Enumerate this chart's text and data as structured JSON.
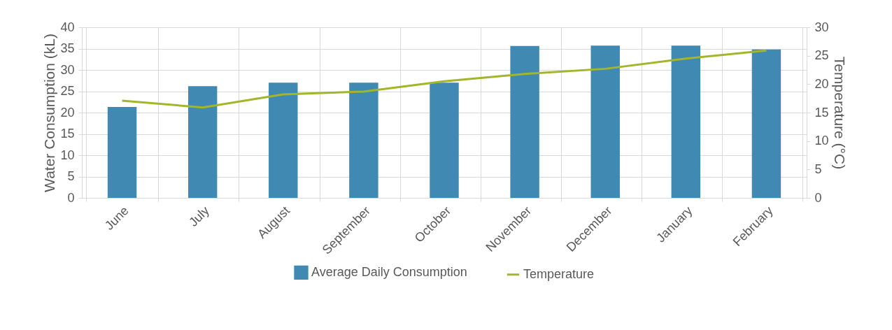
{
  "chart_data": {
    "type": "bar",
    "categories": [
      "June",
      "July",
      "August",
      "September",
      "October",
      "November",
      "December",
      "January",
      "February"
    ],
    "series": [
      {
        "name": "Average Daily Consumption",
        "color": "#3f89b3",
        "values": [
          21.3,
          26.2,
          27.0,
          27.0,
          27.0,
          35.6,
          35.7,
          35.7,
          34.8
        ]
      },
      {
        "name": "Temperature",
        "type": "line",
        "axis": "y2",
        "color": "#a3b62a",
        "values": [
          17.1,
          15.9,
          18.2,
          18.7,
          20.5,
          21.8,
          22.7,
          24.5,
          25.9
        ]
      }
    ],
    "ylabel": "Water Consumption (kL)",
    "y2label": "Temperature (°C)",
    "ylim": [
      0,
      40
    ],
    "yticks": [
      0,
      5,
      10,
      15,
      20,
      25,
      30,
      35,
      40
    ],
    "y2lim": [
      0,
      30
    ],
    "y2ticks": [
      0,
      5,
      10,
      15,
      20,
      25,
      30
    ],
    "grid": true,
    "legend": "bottom"
  }
}
